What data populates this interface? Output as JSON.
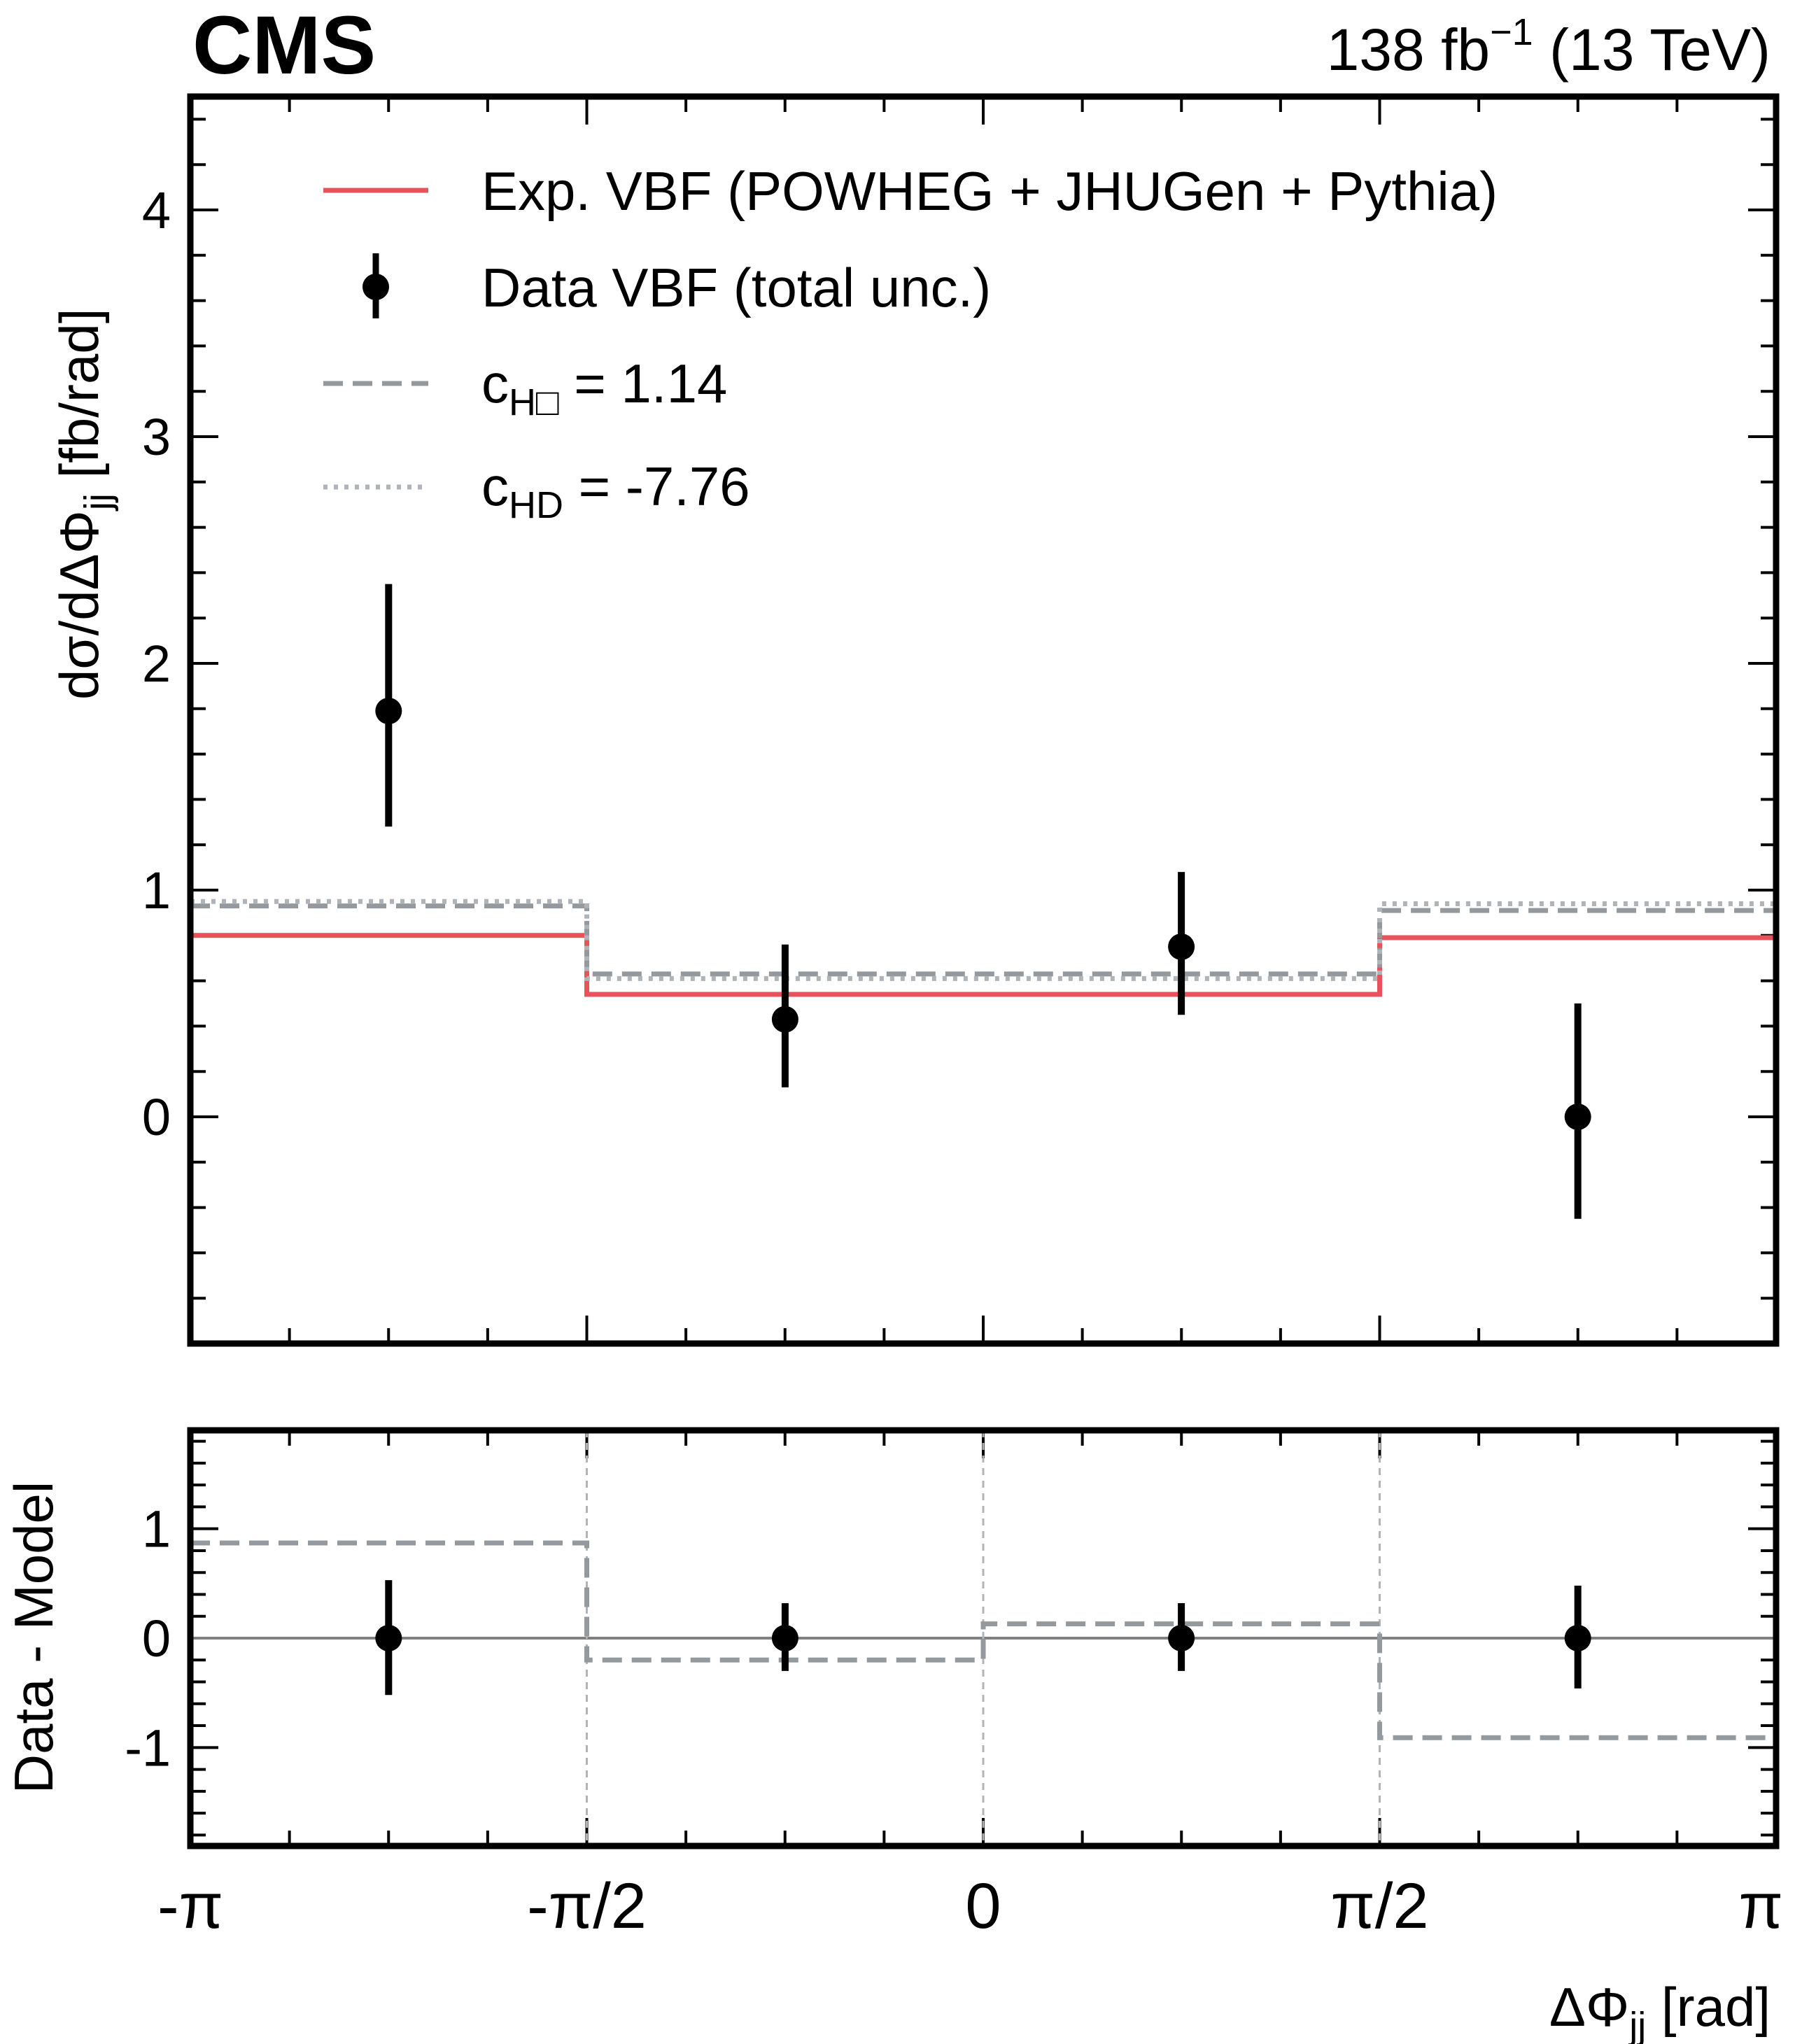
{
  "header": {
    "experiment": "CMS",
    "lumi_main": "138 fb",
    "lumi_sup": "−1",
    "lumi_energy": " (13 TeV)"
  },
  "legend": {
    "items": [
      {
        "label": "Exp. VBF (POWHEG + JHUGen + Pythia)",
        "color": "#e8525a",
        "style": "solid"
      },
      {
        "label": "Data VBF (total unc.)",
        "color": "#000000",
        "style": "marker"
      },
      {
        "label_prefix": "c",
        "label_sub": "H□",
        "label_suffix": " = 1.14",
        "color": "#94999e",
        "style": "dashed"
      },
      {
        "label_prefix": "c",
        "label_sub": "HD",
        "label_suffix": " = -7.76",
        "color": "#b0b4b8",
        "style": "dotted"
      }
    ]
  },
  "chart_data": [
    {
      "type": "line",
      "panel": "main",
      "ylabel": "dσ/dΔΦjj [fb/rad]",
      "ylabel_parts": {
        "pre": "dσ/dΔΦ",
        "sub": "jj",
        "post": " [fb/rad]"
      },
      "ylim": [
        -1.0,
        4.5
      ],
      "y_tick_labels": [
        "0",
        "1",
        "2",
        "3",
        "4"
      ],
      "bin_edges": [
        -3.14159,
        -1.5708,
        0,
        1.5708,
        3.14159
      ],
      "series": [
        {
          "name": "Exp. VBF (POWHEG + JHUGen + Pythia)",
          "kind": "step",
          "color": "#e8525a",
          "values": [
            0.8,
            0.54,
            0.54,
            0.79
          ]
        },
        {
          "name": "cH□ = 1.14",
          "kind": "step-dashed",
          "color": "#94999e",
          "values": [
            0.93,
            0.63,
            0.63,
            0.91
          ]
        },
        {
          "name": "cHD = -7.76",
          "kind": "step-dotted",
          "color": "#b0b4b8",
          "values": [
            0.95,
            0.61,
            0.61,
            0.94
          ]
        },
        {
          "name": "Data VBF (total unc.)",
          "kind": "points",
          "color": "#000000",
          "x": [
            -2.356,
            -0.785,
            0.785,
            2.356
          ],
          "y": [
            1.79,
            0.43,
            0.75,
            0.0
          ],
          "y_low": [
            1.28,
            0.13,
            0.45,
            -0.45
          ],
          "y_high": [
            2.35,
            0.76,
            1.08,
            0.5
          ]
        }
      ]
    },
    {
      "type": "line",
      "panel": "ratio",
      "ylabel": "Data - Model",
      "xlabel": "ΔΦjj [rad]",
      "xlabel_parts": {
        "pre": "ΔΦ",
        "sub": "jj",
        "post": " [rad]"
      },
      "xlim": [
        -3.14159,
        3.14159
      ],
      "x_tick_labels": [
        "-π",
        "-π/2",
        "0",
        "π/2",
        "π"
      ],
      "ylim": [
        -1.9,
        1.9
      ],
      "y_tick_labels": [
        "1",
        "0",
        "-1"
      ],
      "bin_edges": [
        -3.14159,
        -1.5708,
        0,
        1.5708,
        3.14159
      ],
      "series": [
        {
          "name": "cH□ = 1.14",
          "kind": "step-dashed",
          "color": "#94999e",
          "values": [
            0.87,
            -0.2,
            0.13,
            -0.91
          ]
        },
        {
          "name": "Data VBF (total unc.)",
          "kind": "points",
          "color": "#000000",
          "x": [
            -2.356,
            -0.785,
            0.785,
            2.356
          ],
          "y": [
            0.0,
            0.0,
            0.0,
            0.0
          ],
          "y_low": [
            -0.52,
            -0.3,
            -0.3,
            -0.46
          ],
          "y_high": [
            0.53,
            0.32,
            0.32,
            0.48
          ]
        }
      ]
    }
  ]
}
